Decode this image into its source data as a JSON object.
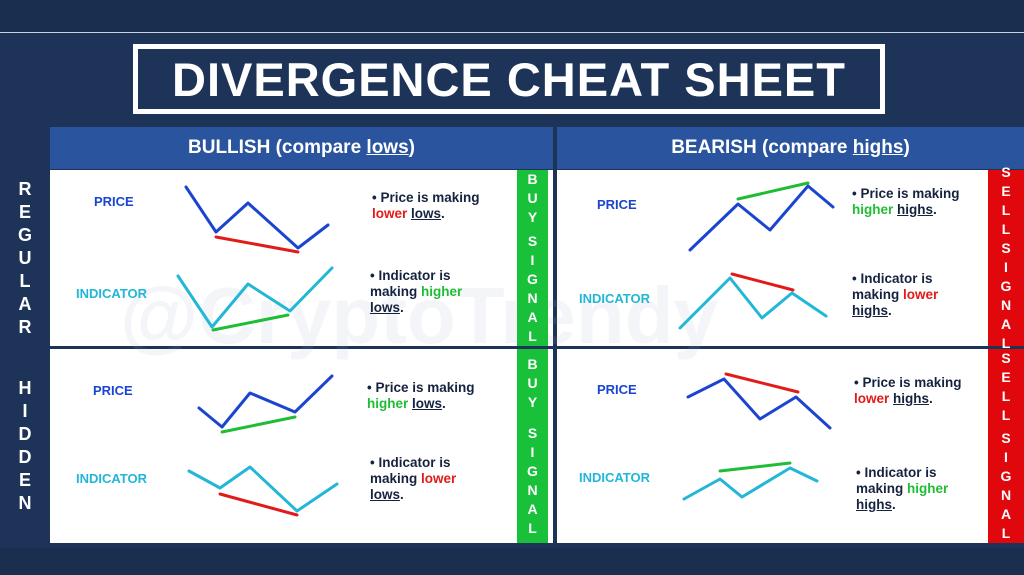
{
  "title": "DIVERGENCE CHEAT SHEET",
  "watermark": "@CryptoTrendy",
  "headers": {
    "bullish": {
      "prefix": "BULLISH (compare ",
      "underlined": "lows",
      "suffix": ")"
    },
    "bearish": {
      "prefix": "BEARISH (compare ",
      "underlined": "highs",
      "suffix": ")"
    }
  },
  "row_labels": {
    "regular": [
      "R",
      "E",
      "G",
      "U",
      "L",
      "A",
      "R"
    ],
    "hidden": [
      "H",
      "I",
      "D",
      "D",
      "E",
      "N"
    ]
  },
  "signals": {
    "buy": {
      "word1": [
        "B",
        "U",
        "Y"
      ],
      "word2": [
        "S",
        "I",
        "G",
        "N",
        "A",
        "L"
      ],
      "color": "#19c13a"
    },
    "sell": {
      "word1": [
        "S",
        "E",
        "L",
        "L"
      ],
      "word2": [
        "S",
        "I",
        "G",
        "N",
        "A",
        "L"
      ],
      "color": "#e0070d"
    }
  },
  "labels": {
    "price": "PRICE",
    "indicator": "INDICATOR"
  },
  "colors": {
    "price_line": "#1b44d0",
    "indicator_line": "#22b7d6",
    "bullish_mark": "#e21a1a",
    "bearish_mark": "#1fbd35"
  },
  "cells": {
    "regular_bullish": {
      "price_desc": {
        "a": "• Price is making ",
        "b": "lower",
        "c": " ",
        "d": "lows",
        "e": "."
      },
      "ind_desc": {
        "a": "• Indicator is making ",
        "b": "higher",
        "c": " ",
        "d": "lows",
        "e": "."
      }
    },
    "regular_bearish": {
      "price_desc": {
        "a": "• Price is making ",
        "b": "higher",
        "c": " ",
        "d": "highs",
        "e": "."
      },
      "ind_desc": {
        "a": "• Indicator is making ",
        "b": "lower",
        "c": " ",
        "d": "highs",
        "e": "."
      }
    },
    "hidden_bullish": {
      "price_desc": {
        "a": "• Price is making ",
        "b": "higher",
        "c": " ",
        "d": "lows",
        "e": "."
      },
      "ind_desc": {
        "a": "• Indicator is making ",
        "b": "lower",
        "c": " ",
        "d": "lows",
        "e": "."
      }
    },
    "hidden_bearish": {
      "price_desc": {
        "a": "• Price is making ",
        "b": "lower",
        "c": " ",
        "d": "highs",
        "e": "."
      },
      "ind_desc": {
        "a": "• Indicator is making ",
        "b": "higher",
        "c": " ",
        "d": "highs",
        "e": "."
      }
    }
  }
}
